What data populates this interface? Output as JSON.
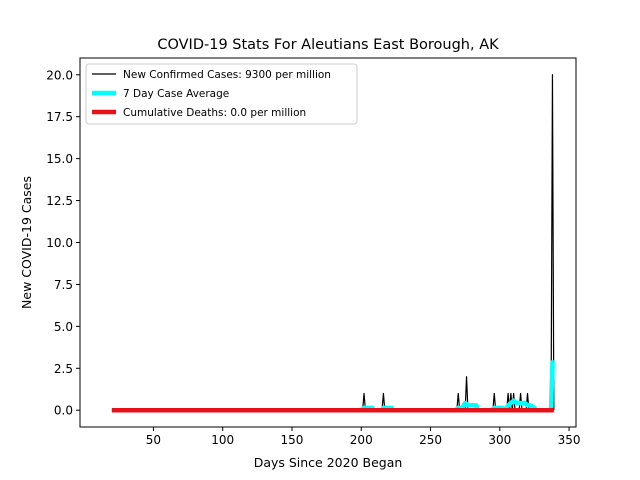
{
  "chart_data": {
    "type": "line",
    "title": "COVID-19 Stats For Aleutians East Borough, AK",
    "xlabel": "Days Since 2020 Began",
    "ylabel": "New COVID-19 Cases",
    "xlim": [
      -3,
      355
    ],
    "ylim": [
      -1.0,
      21.0
    ],
    "xticks": [
      50,
      100,
      150,
      200,
      250,
      300,
      350
    ],
    "yticks": [
      0.0,
      2.5,
      5.0,
      7.5,
      10.0,
      12.5,
      15.0,
      17.5,
      20.0
    ],
    "grid": false,
    "legend_position": "top-left",
    "colors": {
      "new_cases": "#000000",
      "avg": "#00ffff",
      "deaths": "#e8111a"
    },
    "series": [
      {
        "name": "New Confirmed Cases: 9300 per million",
        "x": [
          20,
          201,
          202,
          203,
          215,
          216,
          217,
          269,
          270,
          271,
          275,
          276,
          277,
          295,
          296,
          297,
          305,
          306,
          307,
          308,
          309,
          310,
          311,
          312,
          314,
          315,
          316,
          319,
          320,
          321,
          337,
          338,
          339
        ],
        "y": [
          0,
          0,
          1,
          0,
          0,
          1,
          0,
          0,
          1,
          0,
          0,
          2,
          0,
          0,
          1,
          0,
          0,
          1,
          0,
          1,
          0,
          1,
          0,
          0,
          0,
          1,
          0,
          0,
          1,
          0,
          0,
          20,
          0
        ]
      },
      {
        "name": "7 Day Case Average",
        "x": [
          20,
          200,
          202,
          205,
          208,
          209,
          215,
          216,
          219,
          222,
          223,
          268,
          270,
          273,
          275,
          277,
          280,
          283,
          284,
          294,
          296,
          299,
          302,
          303,
          305,
          306,
          308,
          310,
          312,
          315,
          318,
          320,
          322,
          325,
          326,
          336,
          337,
          338,
          339
        ],
        "y": [
          0,
          0,
          0.14,
          0.14,
          0.14,
          0,
          0,
          0.14,
          0.14,
          0.14,
          0,
          0,
          0.14,
          0.14,
          0.43,
          0.29,
          0.29,
          0.29,
          0,
          0,
          0.14,
          0.14,
          0.14,
          0,
          0.14,
          0.29,
          0.43,
          0.57,
          0.43,
          0.43,
          0.43,
          0.29,
          0.29,
          0.14,
          0,
          0,
          0,
          2.86,
          2.86
        ]
      },
      {
        "name": "Cumulative Deaths: 0.0 per million",
        "x": [
          20,
          339
        ],
        "y": [
          0,
          0
        ]
      }
    ]
  }
}
